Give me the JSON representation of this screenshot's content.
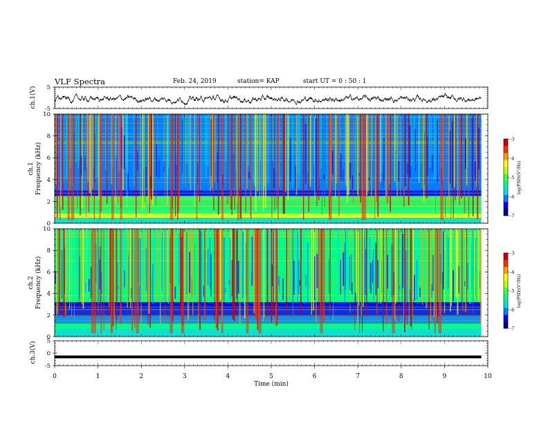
{
  "header": {
    "title": "VLF Spectra",
    "date": "Feb. 24, 2019",
    "station": "station= KAP",
    "start_ut": "start  UT =   0 : 50 : 1"
  },
  "colors": {
    "spectrogram_scale": [
      "#00008b",
      "#0000ff",
      "#0080ff",
      "#00e0e0",
      "#00ff80",
      "#40ff40",
      "#c0ff00",
      "#ffff00",
      "#ffa000",
      "#ff3000",
      "#d00000"
    ]
  },
  "chart_data": [
    {
      "panel": "ch1-waveform",
      "type": "line",
      "ylabel": "ch.1(V)",
      "ylim": [
        -5,
        5
      ],
      "y_ticks": [
        "5",
        "-5"
      ],
      "xlim": [
        0,
        10
      ],
      "description_values": "noisy signal oscillating roughly between -3 and 2 V across 0-9.85 min"
    },
    {
      "panel": "ch1-spectrogram",
      "type": "heatmap",
      "ylabel": "ch.1\nFrequency (kHz)",
      "ylabel_line1": "ch.1",
      "ylabel_line2": "Frequency (kHz)",
      "ylim": [
        0,
        10
      ],
      "y_ticks": [
        "0",
        "2",
        "4",
        "6",
        "8",
        "10"
      ],
      "xlim": [
        0,
        10
      ],
      "colorbar": {
        "label": "log(PSD)(V²/Hz)",
        "range": [
          -7,
          -3
        ],
        "ticks": [
          "-3",
          "-4",
          "-5",
          "-6",
          "-7"
        ]
      }
    },
    {
      "panel": "ch2-spectrogram",
      "type": "heatmap",
      "ylabel_line1": "ch.2",
      "ylabel_line2": "Frequency (kHz)",
      "ylim": [
        0,
        10
      ],
      "y_ticks": [
        "0",
        "2",
        "4",
        "6",
        "8",
        "10"
      ],
      "xlim": [
        0,
        10
      ],
      "colorbar": {
        "label": "log(PSD)(V²/Hz)",
        "range": [
          -7,
          -3
        ],
        "ticks": [
          "-3",
          "-4",
          "-5",
          "-6",
          "-7"
        ]
      }
    },
    {
      "panel": "ch3-waveform",
      "type": "line",
      "ylabel": "ch.3(V)",
      "ylim": [
        -5,
        5
      ],
      "y_ticks": [
        "5",
        "0",
        "-5"
      ],
      "xlim": [
        0,
        10
      ],
      "x": [
        0,
        9.85
      ],
      "y": [
        -1.5,
        -1.5
      ]
    }
  ],
  "xaxis": {
    "label": "Time  (min)",
    "ticks": [
      "0",
      "1",
      "2",
      "3",
      "4",
      "5",
      "6",
      "7",
      "8",
      "9",
      "10"
    ],
    "range": [
      0,
      10
    ]
  }
}
